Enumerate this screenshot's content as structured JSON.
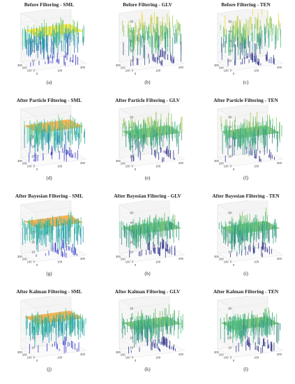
{
  "figure": {
    "panels": [
      {
        "id": "a",
        "title": "Before Filtering - SML",
        "label": "(a)",
        "metric": "SML",
        "stage": "before",
        "colormap": "parula"
      },
      {
        "id": "b",
        "title": "Before Filtering - GLV",
        "label": "(b)",
        "metric": "GLV",
        "stage": "before",
        "colormap": "viridis"
      },
      {
        "id": "c",
        "title": "Before Filtering - TEN",
        "label": "(c)",
        "metric": "TEN",
        "stage": "before",
        "colormap": "viridis"
      },
      {
        "id": "d",
        "title": "After Particle Filtering - SML",
        "label": "(d)",
        "metric": "SML",
        "stage": "particle",
        "colormap": "parula"
      },
      {
        "id": "e",
        "title": "After Particle Filtering - GLV",
        "label": "(e)",
        "metric": "GLV",
        "stage": "particle",
        "colormap": "viridis"
      },
      {
        "id": "f",
        "title": "After Particle Filtering - TEN",
        "label": "(f)",
        "metric": "TEN",
        "stage": "particle",
        "colormap": "viridis"
      },
      {
        "id": "g",
        "title": "After Bayesian Filtering - SML",
        "label": "(g)",
        "metric": "SML",
        "stage": "bayesian",
        "colormap": "parula"
      },
      {
        "id": "h",
        "title": "After Bayesian Filtering - GLV",
        "label": "(h)",
        "metric": "GLV",
        "stage": "bayesian",
        "colormap": "viridis"
      },
      {
        "id": "i",
        "title": "After Bayesian Filtering - TEN",
        "label": "(i)",
        "metric": "TEN",
        "stage": "bayesian",
        "colormap": "viridis"
      },
      {
        "id": "j",
        "title": "After Kalman Filtering - SML",
        "label": "(j)",
        "metric": "SML",
        "stage": "kalman",
        "colormap": "parula"
      },
      {
        "id": "k",
        "title": "After Kalman Filtering - GLV",
        "label": "(k)",
        "metric": "GLV",
        "stage": "kalman",
        "colormap": "viridis"
      },
      {
        "id": "l",
        "title": "After Kalman Filtering - TEN",
        "label": "(l)",
        "metric": "TEN",
        "stage": "kalman",
        "colormap": "viridis"
      }
    ]
  },
  "chart_data": {
    "type": "surface3d",
    "layout": "4x3 grid of 3-D depth surface plots",
    "z_ticks": [
      "0",
      "10",
      "20",
      "30",
      "40",
      "50"
    ],
    "x_ticks": [
      "0",
      "100",
      "200"
    ],
    "y_ticks": [
      "0",
      "100",
      "200",
      "300"
    ],
    "zlim": [
      0,
      50
    ],
    "xlim": [
      0,
      300
    ],
    "ylim": [
      0,
      300
    ],
    "colors": {
      "parula_high": "#f9e530",
      "parula_mid": "#2ab8a8",
      "parula_low": "#3a3ac8",
      "viridis_high": "#f2d83a",
      "viridis_mid": "#3fb987",
      "viridis_low": "#35378f",
      "plateau_orange": "#f5a83a"
    }
  }
}
